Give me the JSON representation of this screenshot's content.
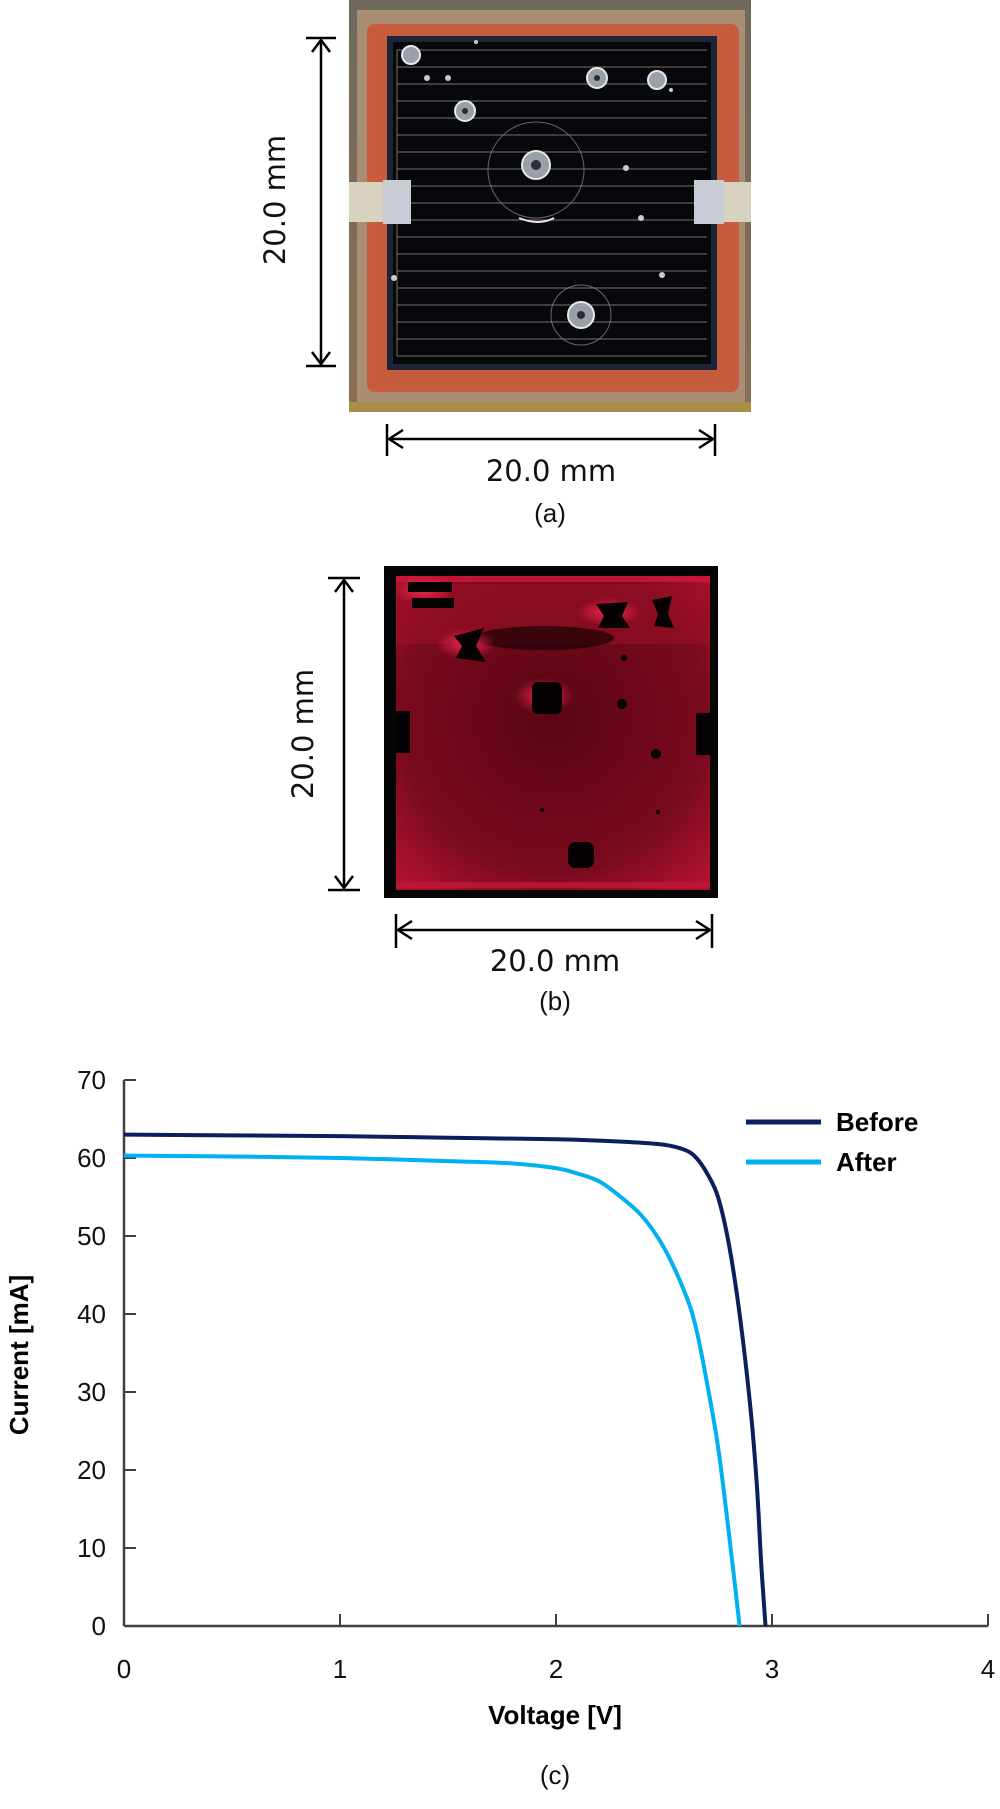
{
  "figure": {
    "panel_a": {
      "caption": "(a)",
      "image_description": "Photograph of solar cell with debris impact craters, front grid fingers and tabs",
      "dim_vertical": "20.0 mm",
      "dim_horizontal": "20.0 mm"
    },
    "panel_b": {
      "caption": "(b)",
      "image_description": "Electroluminescence image of the cell showing dark impact spots",
      "dim_vertical": "20.0 mm",
      "dim_horizontal": "20.0 mm"
    },
    "panel_c": {
      "caption": "(c)"
    }
  },
  "chart_data": {
    "type": "line",
    "title": "",
    "xlabel": "Voltage [V]",
    "ylabel": "Current [mA]",
    "xlim": [
      0,
      4
    ],
    "ylim": [
      0,
      70
    ],
    "xticks": [
      "0",
      "1",
      "2",
      "3",
      "4"
    ],
    "yticks": [
      "0",
      "10",
      "20",
      "30",
      "40",
      "50",
      "60",
      "70"
    ],
    "grid": false,
    "legend_position": "upper right",
    "series": [
      {
        "name": "Before",
        "color": "#0b1f5c",
        "x": [
          0,
          0.5,
          1.0,
          1.5,
          2.0,
          2.3,
          2.5,
          2.6,
          2.65,
          2.7,
          2.75,
          2.8,
          2.85,
          2.9,
          2.93,
          2.95,
          2.97
        ],
        "y": [
          63.0,
          62.9,
          62.8,
          62.6,
          62.4,
          62.1,
          61.7,
          61.0,
          60.0,
          58.0,
          55.0,
          49.0,
          40.0,
          28.0,
          18.0,
          8.0,
          0
        ]
      },
      {
        "name": "After",
        "color": "#00b0f0",
        "x": [
          0,
          0.5,
          1.0,
          1.5,
          1.8,
          2.0,
          2.1,
          2.2,
          2.3,
          2.4,
          2.5,
          2.6,
          2.65,
          2.7,
          2.75,
          2.8,
          2.85
        ],
        "y": [
          60.3,
          60.2,
          60.0,
          59.6,
          59.3,
          58.7,
          58.0,
          57.0,
          55.0,
          52.5,
          48.5,
          42.5,
          38.0,
          31.0,
          23.0,
          12.0,
          0
        ]
      }
    ]
  },
  "colors": {
    "before": "#0b1f5c",
    "after": "#00b0f0",
    "axis": "#404040",
    "el_red": "#e0103a"
  }
}
